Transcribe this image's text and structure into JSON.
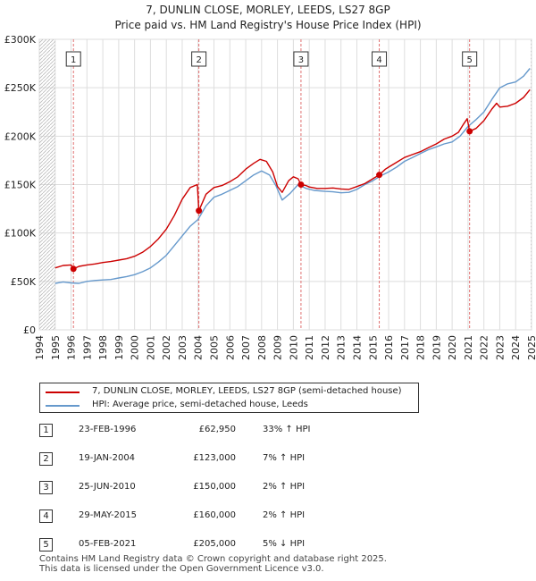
{
  "title_line1": "7, DUNLIN CLOSE, MORLEY, LEEDS, LS27 8GP",
  "title_line2": "Price paid vs. HM Land Registry's House Price Index (HPI)",
  "colors": {
    "property": "#cc0000",
    "hpi": "#6699cc",
    "grid": "#dddddd",
    "marker_line": "#e07070"
  },
  "chart_data": {
    "type": "line",
    "x_range": [
      1994,
      2025
    ],
    "ylim": [
      0,
      300000
    ],
    "y_ticks": [
      {
        "value": 0,
        "label": "£0"
      },
      {
        "value": 50000,
        "label": "£50K"
      },
      {
        "value": 100000,
        "label": "£100K"
      },
      {
        "value": 150000,
        "label": "£150K"
      },
      {
        "value": 200000,
        "label": "£200K"
      },
      {
        "value": 250000,
        "label": "£250K"
      },
      {
        "value": 300000,
        "label": "£300K"
      }
    ],
    "x_ticks": [
      "1994",
      "1995",
      "1996",
      "1997",
      "1998",
      "1999",
      "2000",
      "2001",
      "2002",
      "2003",
      "2004",
      "2005",
      "2006",
      "2007",
      "2008",
      "2009",
      "2010",
      "2011",
      "2012",
      "2013",
      "2014",
      "2015",
      "2016",
      "2017",
      "2018",
      "2019",
      "2020",
      "2021",
      "2022",
      "2023",
      "2024",
      "2025"
    ],
    "series": [
      {
        "name": "7, DUNLIN CLOSE, MORLEY, LEEDS, LS27 8GP (semi-detached house)",
        "color": "#cc0000",
        "points": [
          [
            1995.0,
            64000
          ],
          [
            1995.5,
            66500
          ],
          [
            1996.0,
            67000
          ],
          [
            1996.15,
            62950
          ],
          [
            1996.5,
            65500
          ],
          [
            1997.0,
            67000
          ],
          [
            1997.5,
            68000
          ],
          [
            1998.0,
            69500
          ],
          [
            1998.5,
            70500
          ],
          [
            1999.0,
            72000
          ],
          [
            1999.5,
            73500
          ],
          [
            2000.0,
            76000
          ],
          [
            2000.5,
            80000
          ],
          [
            2001.0,
            86000
          ],
          [
            2001.5,
            94000
          ],
          [
            2002.0,
            104000
          ],
          [
            2002.5,
            118000
          ],
          [
            2003.0,
            135000
          ],
          [
            2003.5,
            147000
          ],
          [
            2003.95,
            150000
          ],
          [
            2004.05,
            123000
          ],
          [
            2004.5,
            140000
          ],
          [
            2005.0,
            147000
          ],
          [
            2005.5,
            149000
          ],
          [
            2006.0,
            153000
          ],
          [
            2006.5,
            158000
          ],
          [
            2007.0,
            166000
          ],
          [
            2007.5,
            172000
          ],
          [
            2007.9,
            176000
          ],
          [
            2008.3,
            174000
          ],
          [
            2008.7,
            163000
          ],
          [
            2009.0,
            148000
          ],
          [
            2009.3,
            142000
          ],
          [
            2009.7,
            154000
          ],
          [
            2010.0,
            158000
          ],
          [
            2010.3,
            156000
          ],
          [
            2010.48,
            150000
          ],
          [
            2010.8,
            149000
          ],
          [
            2011.0,
            147500
          ],
          [
            2011.5,
            146000
          ],
          [
            2012.0,
            146000
          ],
          [
            2012.5,
            146500
          ],
          [
            2013.0,
            145500
          ],
          [
            2013.5,
            145000
          ],
          [
            2014.0,
            148000
          ],
          [
            2014.5,
            151000
          ],
          [
            2015.0,
            156000
          ],
          [
            2015.41,
            160000
          ],
          [
            2015.8,
            166000
          ],
          [
            2016.0,
            168000
          ],
          [
            2016.5,
            173000
          ],
          [
            2017.0,
            178000
          ],
          [
            2017.5,
            181000
          ],
          [
            2018.0,
            184000
          ],
          [
            2018.5,
            188000
          ],
          [
            2019.0,
            192000
          ],
          [
            2019.5,
            197000
          ],
          [
            2020.0,
            200000
          ],
          [
            2020.4,
            204000
          ],
          [
            2020.7,
            212000
          ],
          [
            2020.95,
            218000
          ],
          [
            2021.1,
            205000
          ],
          [
            2021.5,
            208000
          ],
          [
            2022.0,
            216000
          ],
          [
            2022.5,
            228000
          ],
          [
            2022.8,
            234000
          ],
          [
            2023.0,
            230000
          ],
          [
            2023.5,
            231000
          ],
          [
            2024.0,
            234000
          ],
          [
            2024.5,
            240000
          ],
          [
            2024.9,
            248000
          ]
        ]
      },
      {
        "name": "HPI: Average price, semi-detached house, Leeds",
        "color": "#6699cc",
        "points": [
          [
            1995.0,
            48000
          ],
          [
            1995.5,
            49500
          ],
          [
            1996.0,
            48500
          ],
          [
            1996.5,
            48000
          ],
          [
            1997.0,
            50000
          ],
          [
            1997.5,
            51000
          ],
          [
            1998.0,
            51500
          ],
          [
            1998.5,
            52000
          ],
          [
            1999.0,
            53500
          ],
          [
            1999.5,
            55000
          ],
          [
            2000.0,
            57000
          ],
          [
            2000.5,
            60000
          ],
          [
            2001.0,
            64000
          ],
          [
            2001.5,
            70000
          ],
          [
            2002.0,
            77000
          ],
          [
            2002.5,
            87000
          ],
          [
            2003.0,
            97000
          ],
          [
            2003.5,
            107000
          ],
          [
            2004.0,
            114000
          ],
          [
            2004.5,
            128000
          ],
          [
            2005.0,
            137000
          ],
          [
            2005.5,
            140000
          ],
          [
            2006.0,
            144000
          ],
          [
            2006.5,
            148000
          ],
          [
            2007.0,
            154000
          ],
          [
            2007.5,
            160000
          ],
          [
            2008.0,
            164000
          ],
          [
            2008.5,
            160000
          ],
          [
            2008.9,
            149000
          ],
          [
            2009.3,
            134000
          ],
          [
            2009.8,
            141000
          ],
          [
            2010.3,
            150000
          ],
          [
            2010.8,
            146000
          ],
          [
            2011.3,
            144000
          ],
          [
            2012.0,
            143000
          ],
          [
            2012.5,
            142500
          ],
          [
            2013.0,
            141500
          ],
          [
            2013.5,
            142000
          ],
          [
            2014.0,
            145000
          ],
          [
            2014.5,
            150000
          ],
          [
            2015.0,
            154000
          ],
          [
            2015.5,
            159000
          ],
          [
            2016.0,
            163000
          ],
          [
            2016.5,
            168000
          ],
          [
            2017.0,
            174000
          ],
          [
            2017.5,
            178000
          ],
          [
            2018.0,
            182000
          ],
          [
            2018.5,
            186000
          ],
          [
            2019.0,
            189000
          ],
          [
            2019.5,
            192000
          ],
          [
            2020.0,
            194000
          ],
          [
            2020.5,
            200000
          ],
          [
            2021.0,
            210000
          ],
          [
            2021.5,
            217000
          ],
          [
            2022.0,
            225000
          ],
          [
            2022.5,
            238000
          ],
          [
            2023.0,
            250000
          ],
          [
            2023.5,
            254000
          ],
          [
            2024.0,
            256000
          ],
          [
            2024.5,
            262000
          ],
          [
            2024.9,
            270000
          ]
        ]
      }
    ],
    "sales": [
      {
        "num": "1",
        "year": 1996.15,
        "price": 62950
      },
      {
        "num": "2",
        "year": 2004.05,
        "price": 123000
      },
      {
        "num": "3",
        "year": 2010.48,
        "price": 150000
      },
      {
        "num": "4",
        "year": 2015.41,
        "price": 160000
      },
      {
        "num": "5",
        "year": 2021.1,
        "price": 205000
      }
    ]
  },
  "legend": {
    "property_label": "7, DUNLIN CLOSE, MORLEY, LEEDS, LS27 8GP (semi-detached house)",
    "hpi_label": "HPI: Average price, semi-detached house, Leeds"
  },
  "sales_table": [
    {
      "num": "1",
      "date": "23-FEB-1996",
      "price": "£62,950",
      "hpi": "33% ↑ HPI"
    },
    {
      "num": "2",
      "date": "19-JAN-2004",
      "price": "£123,000",
      "hpi": "7% ↑ HPI"
    },
    {
      "num": "3",
      "date": "25-JUN-2010",
      "price": "£150,000",
      "hpi": "2% ↑ HPI"
    },
    {
      "num": "4",
      "date": "29-MAY-2015",
      "price": "£160,000",
      "hpi": "2% ↑ HPI"
    },
    {
      "num": "5",
      "date": "05-FEB-2021",
      "price": "£205,000",
      "hpi": "5% ↓ HPI"
    }
  ],
  "footer_line1": "Contains HM Land Registry data © Crown copyright and database right 2025.",
  "footer_line2": "This data is licensed under the Open Government Licence v3.0."
}
